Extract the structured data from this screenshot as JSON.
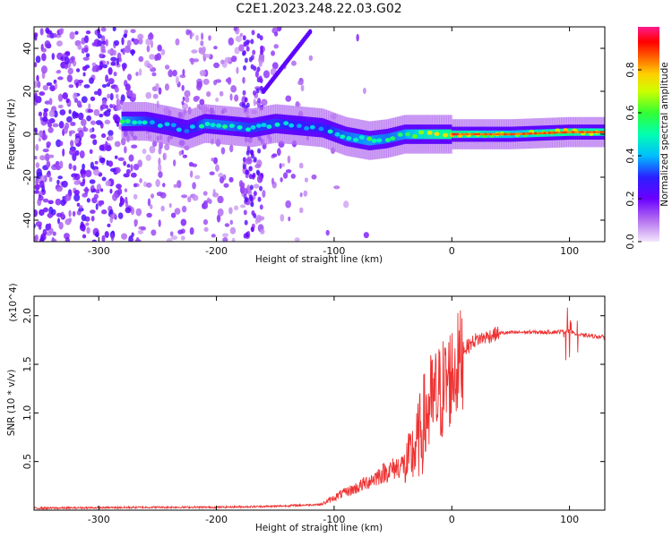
{
  "title": "C2E1.2023.248.22.03.G02",
  "chart_data": [
    {
      "type": "heatmap",
      "xlabel": "Height of straight line (km)",
      "ylabel": "Frequency (Hz)",
      "xlim": [
        -355,
        130
      ],
      "ylim": [
        -50,
        50
      ],
      "xticks": [
        -300,
        -200,
        -100,
        0,
        100
      ],
      "yticks": [
        -40,
        -20,
        0,
        20,
        40
      ],
      "colorbar": {
        "label": "Normalized spectral amplitude",
        "range": [
          0.0,
          1.0
        ],
        "ticks": [
          0.0,
          0.2,
          0.4,
          0.6,
          0.8
        ],
        "colormap": [
          "#f3e6fb",
          "#8a2be2",
          "#2a00ff",
          "#00bfff",
          "#00ff7f",
          "#7fff00",
          "#ffff00",
          "#ff8c00",
          "#ff0000",
          "#ff1a8c"
        ]
      },
      "ridge": {
        "x": [
          -280,
          -260,
          -240,
          -225,
          -210,
          -190,
          -170,
          -150,
          -130,
          -110,
          -90,
          -70,
          -55,
          -40,
          -20,
          0,
          50,
          100,
          130
        ],
        "y": [
          6,
          6,
          4,
          2,
          5,
          4,
          3,
          5,
          4,
          3,
          -1,
          -3,
          -2,
          0,
          0,
          0,
          0,
          1,
          1
        ],
        "amplitude": [
          0.55,
          0.45,
          0.4,
          0.35,
          0.5,
          0.5,
          0.45,
          0.45,
          0.4,
          0.4,
          0.5,
          0.55,
          0.5,
          0.55,
          0.7,
          0.75,
          0.6,
          0.75,
          0.7
        ]
      },
      "colors": {
        "background": "#ffffff",
        "axis": "#000000"
      }
    },
    {
      "type": "line",
      "xlabel": "Height of straight line (km)",
      "ylabel": "SNR (10 * v/v)",
      "y_multiplier": "(x10^4)",
      "xlim": [
        -355,
        130
      ],
      "ylim": [
        0,
        2.2
      ],
      "xticks": [
        -300,
        -200,
        -100,
        0,
        100
      ],
      "yticks": [
        0.5,
        1.0,
        1.5,
        2.0
      ],
      "series": [
        {
          "color": "#ee3333",
          "x": [
            -355,
            -250,
            -200,
            -150,
            -110,
            -95,
            -80,
            -60,
            -40,
            -30,
            -20,
            -10,
            0,
            10,
            20,
            40,
            60,
            80,
            100,
            110,
            130
          ],
          "y": [
            0.02,
            0.03,
            0.03,
            0.04,
            0.06,
            0.15,
            0.22,
            0.35,
            0.45,
            0.7,
            1.1,
            1.25,
            1.45,
            1.65,
            1.75,
            1.82,
            1.83,
            1.83,
            1.84,
            1.8,
            1.78
          ]
        }
      ]
    }
  ]
}
